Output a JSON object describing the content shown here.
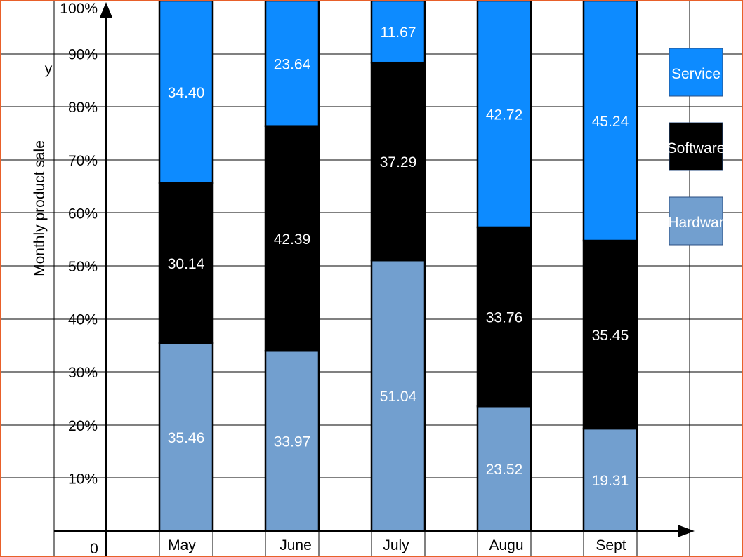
{
  "chart_data": {
    "type": "bar",
    "stacked": true,
    "normalized": true,
    "title": "",
    "xlabel": "",
    "ylabel": "Monthly product sale",
    "y_axis_marker": "y",
    "origin_label": "0",
    "ylim": [
      0,
      100
    ],
    "y_ticks": [
      "10%",
      "20%",
      "30%",
      "40%",
      "50%",
      "60%",
      "70%",
      "80%",
      "90%",
      "100%"
    ],
    "grid": true,
    "legend_position": "right",
    "categories": [
      "May",
      "June",
      "July",
      "Augu",
      "Sept"
    ],
    "series": [
      {
        "name": "Hardwar",
        "color": "#729fcf",
        "values": [
          35.46,
          33.97,
          51.04,
          23.52,
          19.31
        ]
      },
      {
        "name": "Software",
        "color": "#000000",
        "values": [
          30.14,
          42.39,
          37.29,
          33.76,
          35.45
        ]
      },
      {
        "name": "Service",
        "color": "#0d8bff",
        "values": [
          34.4,
          23.64,
          11.67,
          42.72,
          45.24
        ]
      }
    ],
    "legend_order": [
      "Service",
      "Software",
      "Hardwar"
    ]
  }
}
